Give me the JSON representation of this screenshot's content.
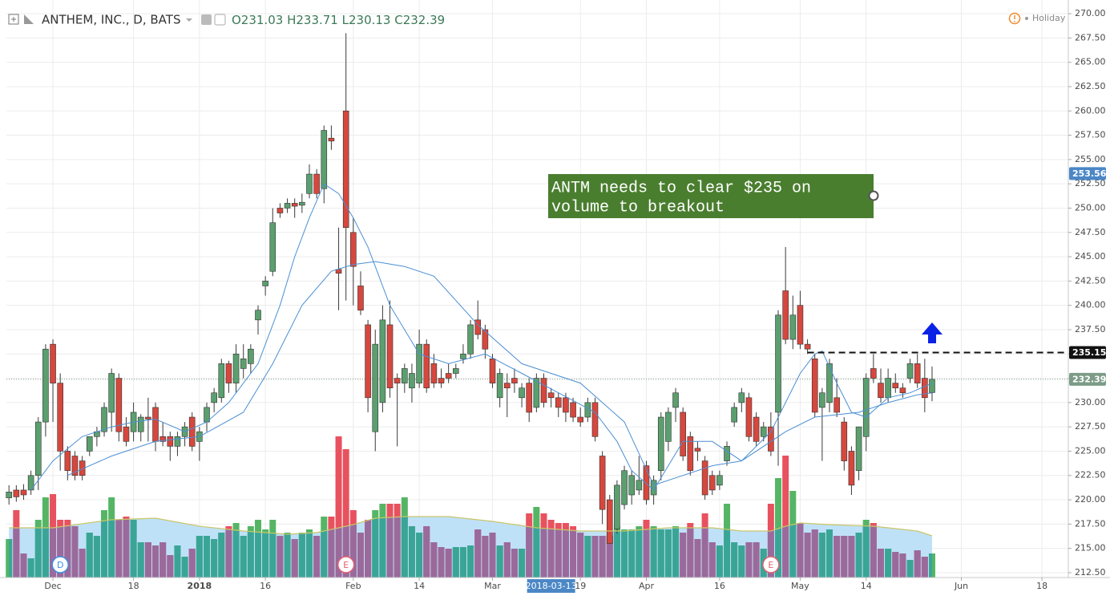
{
  "chart_data": {
    "type": "candlestick",
    "title": "ANTHEM, INC., D, BATS",
    "ohlc_legend": [
      "O231.03",
      "H233.71",
      "L230.13",
      "C232.39"
    ],
    "status": "Holiday",
    "annotation": [
      "ANTM needs to clear $235 on",
      "volume to breakout"
    ],
    "crosshair": {
      "x": 74,
      "label": "2018-03-13"
    },
    "colors": {
      "up": "#5b9f6f",
      "down": "#d6473d",
      "vol_up": "#55b565",
      "vol_down": "#e8515e",
      "vol_up_under": "#3aa597",
      "vol_down_under": "#9a6a9c",
      "vol_area": "#bfe1f8",
      "vol_ma_line": "#c9c66a",
      "ma": "#4a8fd4"
    },
    "grid": true,
    "xlim": [
      -0.35,
      144.6
    ],
    "ylim": [
      212,
      270.75
    ],
    "xticks": [
      {
        "value": 6,
        "label": "Dec"
      },
      {
        "value": 17,
        "label": "18"
      },
      {
        "value": 26,
        "label": "2018"
      },
      {
        "value": 35,
        "label": "16"
      },
      {
        "value": 47,
        "label": "Feb"
      },
      {
        "value": 56,
        "label": "14"
      },
      {
        "value": 66,
        "label": "Mar"
      },
      {
        "value": 78,
        "label": "19"
      },
      {
        "value": 87,
        "label": "Apr"
      },
      {
        "value": 97,
        "label": "16"
      },
      {
        "value": 108,
        "label": "May"
      },
      {
        "value": 117,
        "label": "14"
      },
      {
        "value": 130,
        "label": "Jun"
      },
      {
        "value": 141,
        "label": "18"
      }
    ],
    "yticks": [
      {
        "value": 212.5,
        "label": "212.50"
      },
      {
        "value": 215,
        "label": "215.00"
      },
      {
        "value": 217.5,
        "label": "217.50"
      },
      {
        "value": 220,
        "label": "220.00"
      },
      {
        "value": 222.5,
        "label": "222.50"
      },
      {
        "value": 225,
        "label": "225.00"
      },
      {
        "value": 227.5,
        "label": "227.50"
      },
      {
        "value": 230,
        "label": "230.00"
      },
      {
        "value": 232.5,
        "label": "232.50"
      },
      {
        "value": 235,
        "label": "235.00"
      },
      {
        "value": 237.5,
        "label": "237.50"
      },
      {
        "value": 240,
        "label": "240.00"
      },
      {
        "value": 242.5,
        "label": "242.50"
      },
      {
        "value": 245,
        "label": "245.00"
      },
      {
        "value": 247.5,
        "label": "247.50"
      },
      {
        "value": 250,
        "label": "250.00"
      },
      {
        "value": 252.5,
        "label": "252.50"
      },
      {
        "value": 255,
        "label": "255.00"
      },
      {
        "value": 257.5,
        "label": "257.50"
      },
      {
        "value": 260,
        "label": "260.00"
      },
      {
        "value": 262.5,
        "label": "262.50"
      },
      {
        "value": 265,
        "label": "265.00"
      },
      {
        "value": 267.5,
        "label": "267.50"
      },
      {
        "value": 270,
        "label": "270.00"
      }
    ],
    "open": [
      220.2,
      221,
      221,
      221,
      222.5,
      228,
      236,
      232,
      225,
      224.5,
      224,
      225,
      226.5,
      227,
      229,
      232.5,
      227.5,
      227,
      227,
      228.5,
      229.5,
      226.5,
      226.5,
      225.5,
      226.5,
      228.5,
      226,
      228,
      230,
      230.5,
      234,
      232,
      233.5,
      234,
      238.5,
      242,
      243.5,
      250,
      250,
      250.5,
      250.3,
      251.5,
      253.5,
      252,
      257.2,
      243.7,
      260,
      247.5,
      242,
      238,
      227,
      230,
      238,
      232.5,
      232,
      231.5,
      232,
      236,
      234,
      232.5,
      233,
      233,
      234.5,
      235,
      238.5,
      237.5,
      234.5,
      230.5,
      232,
      232.5,
      230.5,
      232,
      229.5,
      232.5,
      231,
      230.5,
      230.5,
      230,
      228.5,
      228.5,
      230,
      224.5,
      220,
      217,
      219.5,
      220.5,
      221,
      223.5,
      220.5,
      223,
      226,
      229.5,
      229,
      226.5,
      225.3,
      224,
      222.5,
      221.5,
      224,
      228,
      230,
      230.5,
      228.5,
      226.5,
      227.5,
      229,
      241.5,
      236.5,
      240,
      236,
      234.5,
      229.5,
      230,
      230.5,
      228,
      225,
      223,
      226.5,
      233.5,
      232,
      230.5,
      232,
      231.5,
      232.5,
      234,
      232.5,
      231.03
    ],
    "high": [
      221.5,
      221.5,
      221.6,
      223,
      228.5,
      236,
      236.5,
      233,
      225.5,
      225,
      224.5,
      226.5,
      227.5,
      230,
      233.5,
      233,
      228.5,
      230,
      228.8,
      230.5,
      230,
      228,
      227,
      227,
      228,
      229,
      227.5,
      230,
      231.5,
      234.5,
      234.3,
      236,
      236,
      236,
      240,
      243,
      250,
      250.5,
      251,
      251,
      251.5,
      254.5,
      254,
      258.5,
      258.5,
      248,
      268,
      249,
      243.5,
      238.5,
      237.5,
      240,
      240.5,
      233,
      234,
      234,
      237.5,
      236.5,
      235,
      233.5,
      234,
      234,
      236,
      238.5,
      240.5,
      238,
      235,
      233.5,
      233,
      233.5,
      232,
      232.5,
      233,
      233,
      231.5,
      231,
      231,
      230.5,
      229.5,
      230.5,
      230.5,
      225,
      220.5,
      222,
      223.5,
      223,
      224.5,
      224,
      222.5,
      229,
      229.5,
      231.5,
      229.5,
      227,
      226,
      224.5,
      223,
      223,
      226,
      230,
      231.5,
      231,
      229,
      228,
      229,
      239.5,
      246,
      241,
      241.5,
      236.5,
      235,
      231.5,
      234.5,
      232.5,
      228.5,
      225.5,
      227.5,
      233,
      235,
      233.5,
      233.5,
      233,
      232,
      234.5,
      235,
      234.5,
      233.71
    ],
    "low": [
      219.5,
      219.8,
      220,
      220.5,
      221,
      226.5,
      228,
      223,
      222,
      222,
      222,
      224.5,
      225.5,
      226.5,
      227,
      226,
      225.5,
      226,
      226,
      226,
      225,
      225.5,
      224,
      224.5,
      225.5,
      225,
      224,
      227,
      229,
      230,
      231,
      231,
      232.5,
      233,
      237,
      241,
      243,
      249,
      249.5,
      249,
      249.5,
      251,
      251,
      250.5,
      256,
      239.5,
      240.5,
      240,
      239,
      229,
      225,
      229,
      230.5,
      225.5,
      231,
      230,
      231.5,
      231,
      231.5,
      231.5,
      232,
      232.5,
      234,
      234.5,
      236.5,
      234.5,
      231.5,
      229.5,
      228.5,
      231,
      229.5,
      228,
      229,
      229.5,
      229.5,
      228.5,
      228,
      228,
      227.5,
      228,
      226,
      217.5,
      215.5,
      216.5,
      219,
      219.5,
      220.5,
      219.5,
      219.5,
      222,
      225,
      228,
      224,
      222.5,
      224,
      220,
      220.5,
      221,
      223.5,
      227.5,
      229,
      226,
      225.5,
      226,
      224.5,
      223.5,
      236,
      235.5,
      235.5,
      235,
      228.5,
      224,
      229,
      228.5,
      223,
      220.5,
      222,
      225,
      232,
      230,
      230,
      231,
      230.5,
      232,
      231.5,
      229,
      230.13
    ],
    "close": [
      220.8,
      220.3,
      220.5,
      222.5,
      228,
      235.5,
      232,
      225,
      223,
      222.5,
      222.5,
      226.5,
      227,
      229.5,
      233,
      227,
      226,
      229,
      228.5,
      228.3,
      226,
      226,
      225.5,
      226.5,
      227.5,
      225.5,
      227,
      229.5,
      231,
      234,
      232,
      235,
      234.5,
      235.5,
      239.5,
      242.5,
      248.5,
      249.5,
      250.5,
      250.2,
      250.6,
      253.5,
      251.5,
      258,
      256.9,
      243.3,
      248,
      244,
      239.5,
      230.5,
      236,
      238.5,
      231.5,
      232,
      233.5,
      233,
      236,
      231.5,
      232,
      232,
      232.5,
      233.5,
      235,
      238,
      237,
      235.5,
      232,
      233,
      231.5,
      232,
      231.5,
      229,
      232.5,
      230,
      230.5,
      229.5,
      229,
      228.5,
      228,
      230,
      226.5,
      219,
      215.5,
      221.5,
      223,
      222.5,
      222,
      220,
      222,
      228.5,
      229,
      231,
      224.5,
      223,
      225,
      220.5,
      221,
      222.5,
      225.5,
      229.5,
      231,
      226.5,
      226,
      227.5,
      225,
      239,
      236.5,
      239,
      236,
      235.5,
      229,
      231,
      234,
      229,
      224,
      221.5,
      227.5,
      232.5,
      232.5,
      230.5,
      232.5,
      231.5,
      231,
      234,
      232,
      230.5,
      232.39
    ],
    "volume": [
      1.2,
      2.1,
      0.75,
      0.6,
      1.8,
      2.5,
      2.6,
      1.8,
      1.8,
      1.6,
      0.9,
      1.4,
      1.3,
      2.1,
      2.5,
      1.8,
      1.9,
      1.8,
      1.1,
      1.1,
      1.0,
      1.1,
      0.7,
      1.0,
      0.65,
      0.9,
      1.3,
      1.3,
      1.2,
      1.4,
      1.6,
      1.7,
      1.3,
      1.6,
      1.8,
      1.5,
      1.8,
      1.3,
      1.4,
      1.2,
      1.4,
      1.5,
      1.3,
      1.9,
      1.9,
      4.4,
      4.0,
      2.1,
      1.4,
      1.8,
      2.1,
      2.3,
      2.3,
      2.3,
      2.5,
      1.6,
      1.4,
      1.6,
      1.1,
      0.95,
      0.9,
      0.95,
      0.95,
      1.0,
      1.5,
      1.3,
      1.4,
      1.0,
      1.1,
      0.9,
      0.9,
      2.0,
      2.2,
      2.0,
      1.8,
      1.7,
      1.7,
      1.6,
      1.4,
      1.3,
      1.3,
      1.3,
      1.3,
      1.6,
      1.5,
      1.5,
      1.6,
      1.8,
      1.6,
      1.5,
      1.5,
      1.6,
      1.4,
      1.7,
      1.2,
      2.0,
      1.1,
      1.0,
      2.3,
      1.1,
      1.0,
      1.1,
      1.1,
      0.9,
      2.3,
      3.1,
      3.8,
      2.7,
      1.7,
      1.4,
      1.5,
      1.4,
      1.5,
      1.3,
      1.3,
      1.3,
      1.4,
      1.8,
      1.7,
      0.9,
      0.9,
      0.8,
      0.75,
      0.55,
      0.85,
      0.65,
      0.75
    ],
    "ma_short": {
      "x": [
        3,
        6,
        10,
        14,
        17,
        20,
        24,
        27,
        30,
        34,
        37,
        39,
        41,
        43,
        45,
        47,
        49,
        52,
        56,
        60,
        65,
        70,
        75,
        80,
        83,
        85,
        88,
        92,
        96,
        100,
        104,
        106,
        108,
        110,
        111,
        113,
        115,
        117,
        120,
        123,
        126
      ],
      "values": [
        221,
        224,
        226.5,
        227.5,
        228,
        228.3,
        227,
        228,
        230,
        234,
        240,
        245,
        249,
        252.5,
        251.5,
        249,
        246,
        240,
        235,
        234,
        235,
        233,
        231,
        229,
        226,
        223,
        221,
        226,
        226,
        224,
        227,
        230,
        233,
        235,
        235.3,
        232,
        229,
        228.5,
        230.5,
        231,
        232
      ]
    },
    "ma_long": {
      "x": [
        8,
        14,
        20,
        26,
        32,
        36,
        40,
        44,
        47,
        50,
        54,
        58,
        64,
        70,
        78,
        84,
        88,
        92,
        96,
        100,
        106,
        110,
        116,
        120,
        124,
        126
      ],
      "values": [
        222.5,
        224.5,
        226,
        226.5,
        229,
        234,
        240,
        243.5,
        244.2,
        244.5,
        244,
        243,
        238,
        234,
        232,
        228,
        221.5,
        222.5,
        223.5,
        224,
        227,
        228.5,
        229,
        230,
        230.8,
        231
      ]
    },
    "volume_ma": {
      "x": [
        0,
        6,
        14,
        20,
        26,
        32,
        38,
        42,
        47,
        50,
        54,
        60,
        66,
        72,
        78,
        84,
        90,
        96,
        100,
        104,
        106,
        108,
        112,
        118,
        122,
        124,
        126
      ],
      "values": [
        1.55,
        1.55,
        1.8,
        1.85,
        1.6,
        1.45,
        1.35,
        1.4,
        1.65,
        1.85,
        1.9,
        1.9,
        1.75,
        1.55,
        1.45,
        1.45,
        1.55,
        1.55,
        1.45,
        1.45,
        1.6,
        1.7,
        1.65,
        1.6,
        1.5,
        1.45,
        1.3
      ]
    },
    "markers": [
      {
        "label": "D",
        "x": 7,
        "color": "#3d8fe0"
      },
      {
        "label": "E",
        "x": 46,
        "color": "#e06070"
      },
      {
        "label": "E",
        "x": 104,
        "color": "#e06070"
      }
    ],
    "price_badges": [
      {
        "value": 253.56,
        "color": "#4b87c6"
      },
      {
        "value": 235.15,
        "color": "#111111",
        "line": "dashed",
        "line_from": 109
      },
      {
        "value": 232.39,
        "color": "#7d9c88",
        "line": "dotted"
      }
    ]
  }
}
